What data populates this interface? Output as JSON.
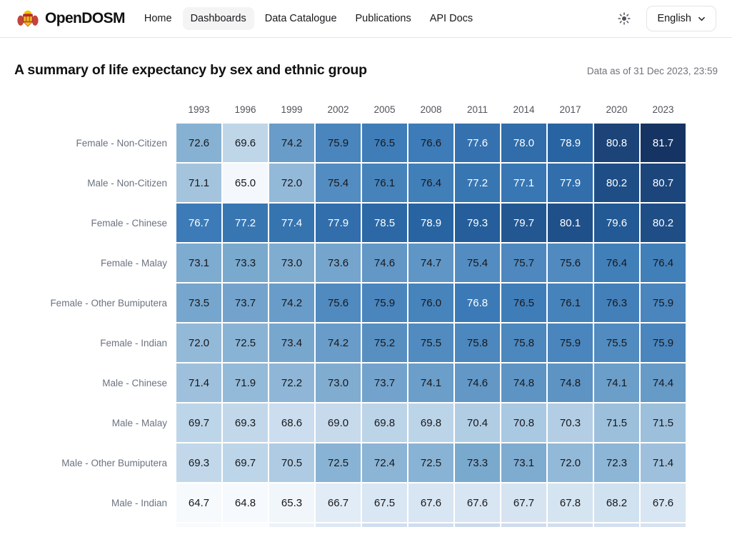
{
  "header": {
    "brand": "OpenDOSM",
    "nav": [
      {
        "label": "Home",
        "active": false
      },
      {
        "label": "Dashboards",
        "active": true
      },
      {
        "label": "Data Catalogue",
        "active": false
      },
      {
        "label": "Publications",
        "active": false
      },
      {
        "label": "API Docs",
        "active": false
      }
    ],
    "language": "English"
  },
  "main": {
    "title": "A summary of life expectancy by sex and ethnic group",
    "data_as_of": "Data as of 31 Dec 2023, 23:59"
  },
  "chart_data": {
    "type": "heatmap",
    "title": "A summary of life expectancy by sex and ethnic group",
    "x": [
      1993,
      1996,
      1999,
      2002,
      2005,
      2008,
      2011,
      2014,
      2017,
      2020,
      2023
    ],
    "rows": [
      {
        "label": "Female - Non-Citizen",
        "values": [
          72.6,
          69.6,
          74.2,
          75.9,
          76.5,
          76.6,
          77.6,
          78.0,
          78.9,
          80.8,
          81.7
        ]
      },
      {
        "label": "Male - Non-Citizen",
        "values": [
          71.1,
          65.0,
          72.0,
          75.4,
          76.1,
          76.4,
          77.2,
          77.1,
          77.9,
          80.2,
          80.7
        ]
      },
      {
        "label": "Female - Chinese",
        "values": [
          76.7,
          77.2,
          77.4,
          77.9,
          78.5,
          78.9,
          79.3,
          79.7,
          80.1,
          79.6,
          80.2
        ]
      },
      {
        "label": "Female - Malay",
        "values": [
          73.1,
          73.3,
          73.0,
          73.6,
          74.6,
          74.7,
          75.4,
          75.7,
          75.6,
          76.4,
          76.4
        ]
      },
      {
        "label": "Female - Other Bumiputera",
        "values": [
          73.5,
          73.7,
          74.2,
          75.6,
          75.9,
          76.0,
          76.8,
          76.5,
          76.1,
          76.3,
          75.9
        ]
      },
      {
        "label": "Female - Indian",
        "values": [
          72.0,
          72.5,
          73.4,
          74.2,
          75.2,
          75.5,
          75.8,
          75.8,
          75.9,
          75.5,
          75.9
        ]
      },
      {
        "label": "Male - Chinese",
        "values": [
          71.4,
          71.9,
          72.2,
          73.0,
          73.7,
          74.1,
          74.6,
          74.8,
          74.8,
          74.1,
          74.4
        ]
      },
      {
        "label": "Male - Malay",
        "values": [
          69.7,
          69.3,
          68.6,
          69.0,
          69.8,
          69.8,
          70.4,
          70.8,
          70.3,
          71.5,
          71.5
        ]
      },
      {
        "label": "Male - Other Bumiputera",
        "values": [
          69.3,
          69.7,
          70.5,
          72.5,
          72.4,
          72.5,
          73.3,
          73.1,
          72.0,
          72.3,
          71.4
        ]
      },
      {
        "label": "Male - Indian",
        "values": [
          64.7,
          64.8,
          65.3,
          66.7,
          67.5,
          67.6,
          67.6,
          67.7,
          67.8,
          68.2,
          67.6
        ]
      }
    ],
    "value_domain": [
      64.7,
      81.7
    ],
    "colorscale": [
      {
        "pos": 0.0,
        "color": "#f7fafd"
      },
      {
        "pos": 0.15,
        "color": "#dce8f4"
      },
      {
        "pos": 0.3,
        "color": "#bcd4e8"
      },
      {
        "pos": 0.5,
        "color": "#7caacf"
      },
      {
        "pos": 0.7,
        "color": "#3d7cb8"
      },
      {
        "pos": 0.85,
        "color": "#26619f"
      },
      {
        "pos": 1.0,
        "color": "#163463"
      }
    ],
    "text_white_threshold": 76.65,
    "text_color_dark": "#18181b",
    "text_color_light": "#ffffff",
    "partial_row_colors": [
      "#f8fafc",
      "#fafcfd",
      "#ecf2f8",
      "#dde8f3",
      "#d0def0",
      "#cfddee",
      "#ccdaea",
      "#cedcec",
      "#d1deed",
      "#d3e0ef",
      "#d6e2f0"
    ],
    "value_format": "0.1f",
    "grid": false,
    "legend": "none"
  }
}
